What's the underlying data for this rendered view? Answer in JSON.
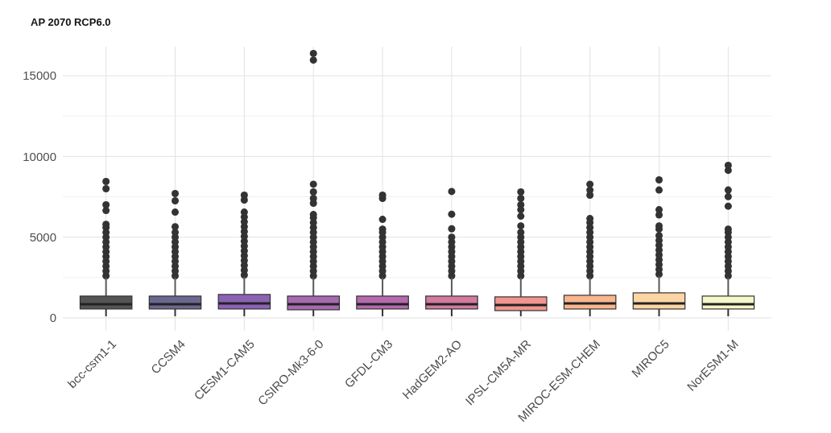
{
  "chart_data": {
    "type": "box",
    "title": "AP 2070 RCP6.0",
    "categories": [
      "bcc-csm1-1",
      "CCSM4",
      "CESM1-CAM5",
      "CSIRO-Mk3-6-0",
      "GFDL-CM3",
      "HadGEM2-AO",
      "IPSL-CM5A-MR",
      "MIROC-ESM-CHEM",
      "MIROC5",
      "NorESM1-M"
    ],
    "colors": [
      "#555555",
      "#6b6890",
      "#8c62b5",
      "#a66ab0",
      "#b56aae",
      "#d47a9e",
      "#f0958f",
      "#f8b68e",
      "#fdd5a4",
      "#f4f7c8"
    ],
    "boxes": [
      {
        "low": 100,
        "q1": 550,
        "median": 850,
        "q3": 1350,
        "high": 2500,
        "outliers": [
          2600,
          2900,
          3200,
          3500,
          3800,
          4100,
          4400,
          4700,
          5000,
          5300,
          5600,
          5800,
          6650,
          7000,
          8000,
          8450
        ]
      },
      {
        "low": 100,
        "q1": 550,
        "median": 850,
        "q3": 1350,
        "high": 2500,
        "outliers": [
          2600,
          2900,
          3200,
          3500,
          3800,
          4100,
          4400,
          4700,
          5000,
          5300,
          5650,
          6550,
          7250,
          7700
        ]
      },
      {
        "low": 100,
        "q1": 550,
        "median": 900,
        "q3": 1450,
        "high": 2550,
        "outliers": [
          2650,
          2950,
          3250,
          3550,
          3850,
          4150,
          4450,
          4750,
          5050,
          5350,
          5650,
          5950,
          6250,
          6550,
          7300,
          7600
        ]
      },
      {
        "low": 100,
        "q1": 500,
        "median": 850,
        "q3": 1350,
        "high": 2500,
        "outliers": [
          2600,
          2900,
          3200,
          3500,
          3800,
          4100,
          4400,
          4700,
          5000,
          5300,
          5600,
          5900,
          6200,
          6400,
          7100,
          7400,
          7800,
          8280,
          15970,
          16380
        ]
      },
      {
        "low": 100,
        "q1": 550,
        "median": 850,
        "q3": 1350,
        "high": 2500,
        "outliers": [
          2600,
          2900,
          3200,
          3500,
          3800,
          4100,
          4400,
          4700,
          5000,
          5300,
          5500,
          6100,
          7400,
          7600
        ]
      },
      {
        "low": 100,
        "q1": 550,
        "median": 850,
        "q3": 1350,
        "high": 2500,
        "outliers": [
          2600,
          2900,
          3200,
          3500,
          3800,
          4100,
          4400,
          4700,
          5000,
          5520,
          6420,
          7830
        ]
      },
      {
        "low": 100,
        "q1": 450,
        "median": 800,
        "q3": 1300,
        "high": 2500,
        "outliers": [
          2600,
          2900,
          3200,
          3500,
          3800,
          4100,
          4400,
          4700,
          5000,
          5300,
          5700,
          6300,
          6700,
          7000,
          7400,
          7800
        ]
      },
      {
        "low": 100,
        "q1": 550,
        "median": 900,
        "q3": 1400,
        "high": 2500,
        "outliers": [
          2600,
          2900,
          3200,
          3500,
          3800,
          4100,
          4400,
          4700,
          5000,
          5300,
          5600,
          5900,
          6150,
          7600,
          7920,
          8280
        ]
      },
      {
        "low": 100,
        "q1": 550,
        "median": 900,
        "q3": 1550,
        "high": 2600,
        "outliers": [
          2700,
          3000,
          3300,
          3600,
          3900,
          4200,
          4500,
          4800,
          5100,
          5500,
          5700,
          6380,
          6700,
          7920,
          8550
        ]
      },
      {
        "low": 100,
        "q1": 550,
        "median": 850,
        "q3": 1350,
        "high": 2500,
        "outliers": [
          2600,
          2900,
          3200,
          3500,
          3800,
          4100,
          4400,
          4700,
          5000,
          5300,
          5500,
          6920,
          7510,
          7920,
          9140,
          9450
        ]
      }
    ],
    "ylim": [
      -800,
      16800
    ],
    "yticks": [
      0,
      {
        "value": 2500,
        "label": null
      },
      5000,
      {
        "value": 7500,
        "label": null
      },
      10000,
      {
        "value": 12500,
        "label": null
      },
      15000
    ],
    "grid": true
  }
}
